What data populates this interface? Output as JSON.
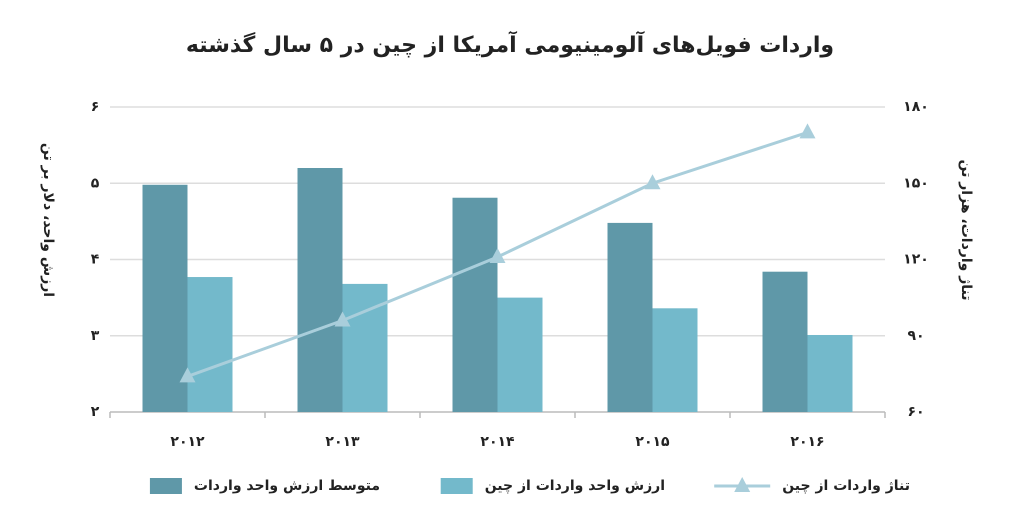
{
  "chart_data": {
    "type": "bar",
    "title": "واردات فویل‌های آلومینیومی آمریکا از چین در ۵ سال گذشته",
    "y_label": "ارزش واحد، دلار بر تن",
    "y2_label": "تناژ واردات، هزار تن",
    "categories": [
      "۲۰۱۲",
      "۲۰۱۳",
      "۲۰۱۴",
      "۲۰۱۵",
      "۲۰۱۶"
    ],
    "series": [
      {
        "name": "متوسط ارزش واحد واردات",
        "color": "#5f98a8",
        "type": "bar",
        "values": [
          4.98,
          5.2,
          4.81,
          4.48,
          3.84
        ]
      },
      {
        "name": "ارزش واحد واردات از چین",
        "color": "#73b9cb",
        "type": "bar",
        "values": [
          3.77,
          3.68,
          3.5,
          3.36,
          3.01
        ]
      },
      {
        "name": "تناژ واردات از چین",
        "color": "#a9cedb",
        "type": "line",
        "axis": "y2",
        "values": [
          74,
          96,
          121,
          150,
          170
        ]
      }
    ],
    "ylim": [
      2,
      6
    ],
    "yticks": [
      {
        "value": 2,
        "label": "۲"
      },
      {
        "value": 3,
        "label": "۳"
      },
      {
        "value": 4,
        "label": "۴"
      },
      {
        "value": 5,
        "label": "۵"
      },
      {
        "value": 6,
        "label": "۶"
      }
    ],
    "y2lim": [
      60,
      180
    ],
    "y2ticks": [
      {
        "value": 60,
        "label": "۶۰"
      },
      {
        "value": 90,
        "label": "۹۰"
      },
      {
        "value": 120,
        "label": "۱۲۰"
      },
      {
        "value": 150,
        "label": "۱۵۰"
      },
      {
        "value": 180,
        "label": "۱۸۰"
      }
    ],
    "grid": true,
    "legend": "bottom"
  }
}
